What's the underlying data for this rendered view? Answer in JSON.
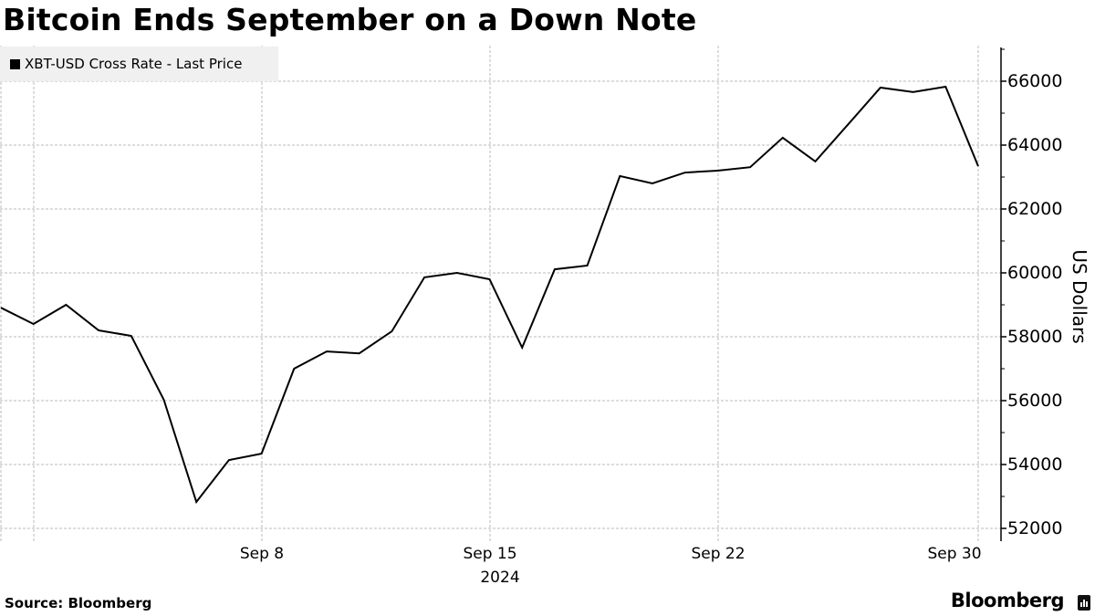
{
  "title": "Bitcoin Ends September on a Down Note",
  "legend": {
    "label": "XBT-USD Cross Rate - Last Price",
    "color": "#000000"
  },
  "y_axis": {
    "label": "US Dollars",
    "ticks": [
      "66000",
      "64000",
      "62000",
      "60000",
      "58000",
      "56000",
      "54000",
      "52000"
    ]
  },
  "x_axis": {
    "ticks": [
      "Sep 8",
      "Sep 15",
      "Sep 22",
      "Sep 30"
    ],
    "year_label": "2024"
  },
  "source": "Source: Bloomberg",
  "brand": "Bloomberg",
  "chart_data": {
    "type": "line",
    "title": "Bitcoin Ends September on a Down Note",
    "xlabel": "2024",
    "ylabel": "US Dollars",
    "ylim": [
      51600,
      67000
    ],
    "grid": true,
    "legend_position": "top-left",
    "x_tick_labels": [
      "Sep 8",
      "Sep 15",
      "Sep 22",
      "Sep 30"
    ],
    "y_tick_labels": [
      52000,
      54000,
      56000,
      58000,
      60000,
      62000,
      64000,
      66000
    ],
    "series": [
      {
        "name": "XBT-USD Cross Rate - Last Price",
        "color": "#000000",
        "x": [
          "Aug 31",
          "Sep 1",
          "Sep 2",
          "Sep 3",
          "Sep 4",
          "Sep 5",
          "Sep 6",
          "Sep 7",
          "Sep 8",
          "Sep 9",
          "Sep 10",
          "Sep 11",
          "Sep 12",
          "Sep 13",
          "Sep 14",
          "Sep 15",
          "Sep 16",
          "Sep 17",
          "Sep 18",
          "Sep 19",
          "Sep 20",
          "Sep 21",
          "Sep 22",
          "Sep 23",
          "Sep 24",
          "Sep 25",
          "Sep 26",
          "Sep 27",
          "Sep 28",
          "Sep 29",
          "Sep 30"
        ],
        "values": [
          58910,
          58400,
          59000,
          58200,
          58030,
          56030,
          52830,
          54140,
          54340,
          57000,
          57540,
          57480,
          58170,
          59860,
          60000,
          59800,
          57660,
          60110,
          60230,
          63030,
          62800,
          63140,
          63200,
          63310,
          64230,
          63490,
          64640,
          65800,
          65660,
          65830,
          63340
        ]
      }
    ]
  }
}
